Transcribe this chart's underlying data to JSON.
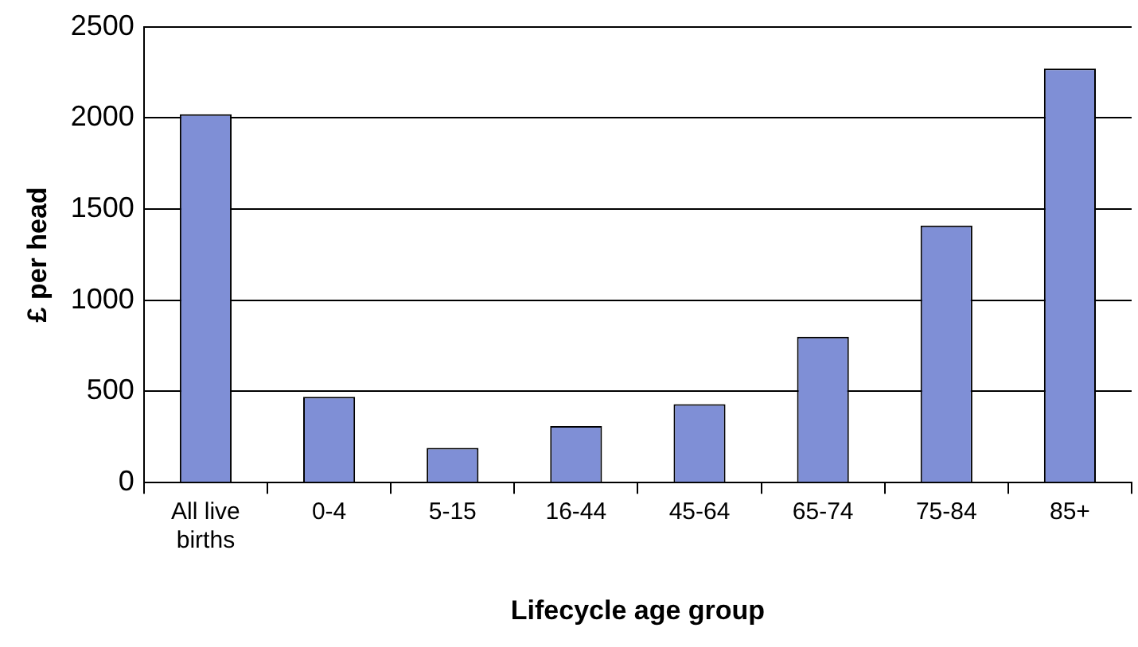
{
  "chart_data": {
    "type": "bar",
    "xlabel": "Lifecycle age group",
    "ylabel": "£ per head",
    "categories": [
      "All live births",
      "0-4",
      "5-15",
      "16-44",
      "45-64",
      "65-74",
      "75-84",
      "85+"
    ],
    "values": [
      2020,
      470,
      190,
      310,
      430,
      800,
      1410,
      2270
    ],
    "color": "#7f8fd6",
    "ylim": [
      0,
      2500
    ],
    "yticks": [
      0,
      500,
      1000,
      1500,
      2000,
      2500
    ],
    "grid": "y",
    "legend": false
  }
}
